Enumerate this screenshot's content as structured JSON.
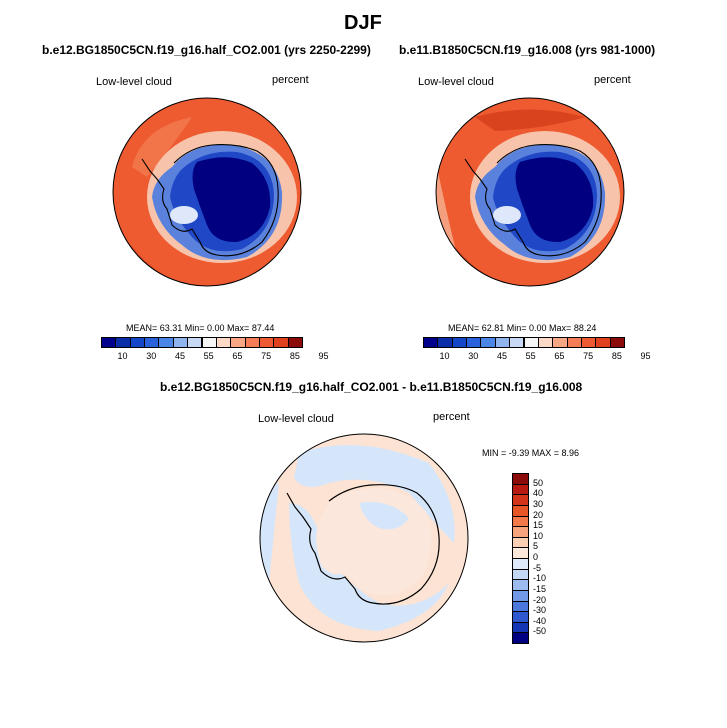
{
  "figure": {
    "title": "DJF"
  },
  "panels": [
    {
      "subtitle": "b.e12.BG1850C5CN.f19_g16.half_CO2.001 (yrs 2250-2299)",
      "left_label": "Low-level cloud",
      "right_label": "percent",
      "stats": "MEAN=  63.31  Min=   0.00  Max=   87.44"
    },
    {
      "subtitle": "b.e11.B1850C5CN.f19_g16.008 (yrs 981-1000)",
      "left_label": "Low-level cloud",
      "right_label": "percent",
      "stats": "MEAN=  62.81  Min=   0.00  Max=   88.24"
    },
    {
      "subtitle": "b.e12.BG1850C5CN.f19_g16.half_CO2.001 - b.e11.B1850C5CN.f19_g16.008",
      "left_label": "Low-level cloud",
      "right_label": "percent",
      "stats": "MIN =  -9.39 MAX =   8.96"
    }
  ],
  "colorbars": {
    "absolute": {
      "colors": [
        "#00008b",
        "#0a2ea8",
        "#1446c8",
        "#2a62dc",
        "#4a86e6",
        "#8fb4ee",
        "#c8d9f5",
        "#f5f5f5",
        "#fbd9c6",
        "#f8a785",
        "#f47c56",
        "#ee5a34",
        "#e0421f",
        "#8b0a0a"
      ],
      "labels": [
        "10",
        "30",
        "45",
        "55",
        "65",
        "75",
        "85",
        "95"
      ]
    },
    "difference": {
      "colors": [
        "#8b0a0a",
        "#b81a12",
        "#d4351a",
        "#e85526",
        "#f27a4a",
        "#f6a37e",
        "#fbcfb3",
        "#fde9dc",
        "#dfeafa",
        "#c3d8f4",
        "#9cbcef",
        "#7199e6",
        "#4c78de",
        "#2f58d0",
        "#1436b4",
        "#000080"
      ],
      "labels": [
        "50",
        "40",
        "30",
        "20",
        "15",
        "10",
        "5",
        "0",
        "-5",
        "-10",
        "-15",
        "-20",
        "-30",
        "-40",
        "-50"
      ]
    }
  },
  "colors": {
    "ocean_high": "#ef5a30",
    "ocean_mid": "#e8552b",
    "ocean_dark": "#db4a22",
    "ice_deep": "#000080",
    "ice_mid": "#1b3fc0",
    "ice_light": "#6b8fe0",
    "diff_pos": "#fde3d3",
    "diff_neg": "#d6e6fa",
    "coast": "#000000"
  },
  "legend_glyphs": {
    "map_projection": "south-polar-stereographic"
  }
}
